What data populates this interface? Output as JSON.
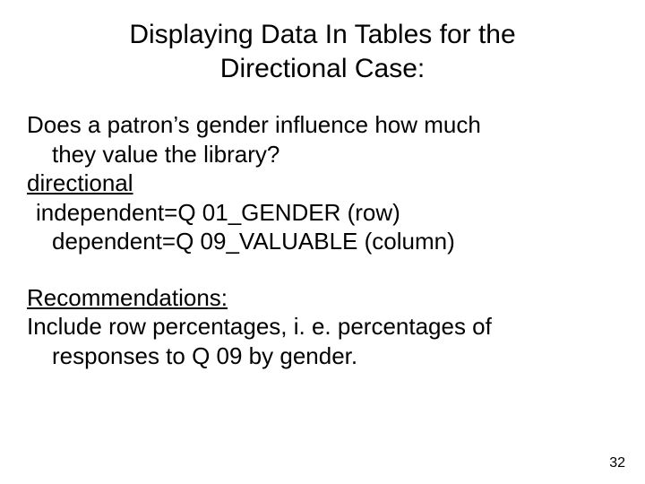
{
  "title_line1": "Displaying Data In Tables for the",
  "title_line2": "Directional Case:",
  "question_line1": "Does a patron’s gender influence how much",
  "question_line2": "they value the library?",
  "directional_label": "directional",
  "independent_line": "independent=Q 01_GENDER (row)",
  "dependent_line": "dependent=Q 09_VALUABLE (column)",
  "recommend_heading": "Recommendations:",
  "recommend_line1": "Include row percentages, i. e. percentages of",
  "recommend_line2": "responses to Q 09 by gender.",
  "page_number": "32"
}
